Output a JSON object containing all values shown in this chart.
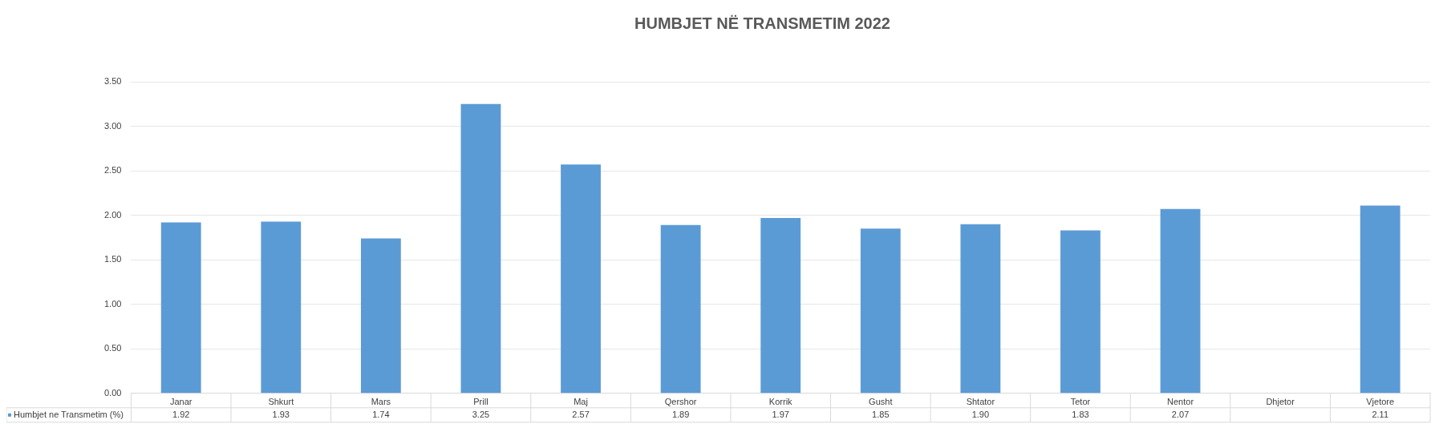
{
  "chart_data": {
    "type": "bar",
    "title": "HUMBJET NË TRANSMETIM 2022",
    "categories": [
      "Janar",
      "Shkurt",
      "Mars",
      "Prill",
      "Maj",
      "Qershor",
      "Korrik",
      "Gusht",
      "Shtator",
      "Tetor",
      "Nentor",
      "Dhjetor",
      "Vjetore"
    ],
    "series": [
      {
        "name": "Humbjet ne Transmetim (%)",
        "color": "#5b9bd5",
        "values": [
          1.92,
          1.93,
          1.74,
          3.25,
          2.57,
          1.89,
          1.97,
          1.85,
          1.9,
          1.83,
          2.07,
          null,
          2.11
        ],
        "value_labels": [
          "1.92",
          "1.93",
          "1.74",
          "3.25",
          "2.57",
          "1.89",
          "1.97",
          "1.85",
          "1.90",
          "1.83",
          "2.07",
          null,
          "2.11"
        ]
      }
    ],
    "ylim": [
      0,
      3.5
    ],
    "yticks": [
      {
        "value": 0,
        "label": "0.00"
      },
      {
        "value": 0.5,
        "label": "0.50"
      },
      {
        "value": 1,
        "label": "1.00"
      },
      {
        "value": 1.5,
        "label": "1.50"
      },
      {
        "value": 2,
        "label": "2.00"
      },
      {
        "value": 2.5,
        "label": "2.50"
      },
      {
        "value": 3,
        "label": "3.00"
      },
      {
        "value": 3.5,
        "label": "3.50"
      }
    ],
    "grid": "y"
  }
}
